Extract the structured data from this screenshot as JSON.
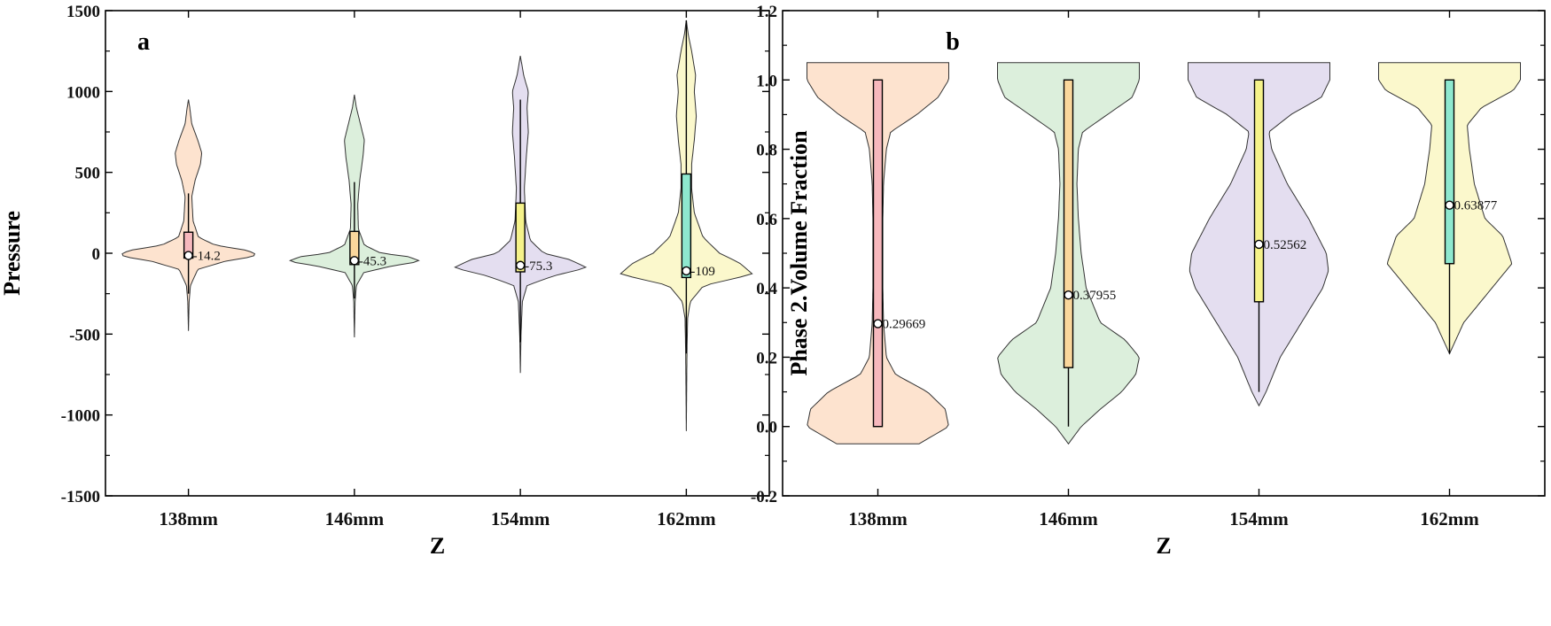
{
  "chart_data": [
    {
      "type": "violin",
      "panel": "a",
      "xlabel": "Z",
      "ylabel": "Pressure",
      "categories": [
        "138mm",
        "146mm",
        "154mm",
        "162mm"
      ],
      "ylim": [
        -1500,
        1500
      ],
      "yticks": [
        -1500,
        -1000,
        -500,
        0,
        500,
        1000,
        1500
      ],
      "ytick_labels": [
        "-1500",
        "-1000",
        "-500",
        "0",
        "500",
        "1000",
        "1500"
      ],
      "violin_colors": [
        "#fde3cf",
        "#dcefdc",
        "#e4def0",
        "#fbf8cc"
      ],
      "box_colors": [
        "#f7b8bd",
        "#fad79c",
        "#f5f28a",
        "#8ee8cf"
      ],
      "distributions": [
        {
          "category": "138mm",
          "min": -480,
          "max": 950,
          "q1": -30,
          "q3": 130,
          "median": -14.2,
          "median_label": "-14.2",
          "whisker_low": -250,
          "whisker_high": 370,
          "profile": [
            [
              -480,
              0
            ],
            [
              -300,
              1
            ],
            [
              -200,
              3
            ],
            [
              -100,
              14
            ],
            [
              -50,
              55
            ],
            [
              -20,
              98
            ],
            [
              0,
              100
            ],
            [
              20,
              85
            ],
            [
              50,
              40
            ],
            [
              100,
              15
            ],
            [
              200,
              7
            ],
            [
              350,
              5
            ],
            [
              450,
              10
            ],
            [
              550,
              18
            ],
            [
              620,
              20
            ],
            [
              700,
              14
            ],
            [
              800,
              5
            ],
            [
              900,
              2
            ],
            [
              950,
              0
            ]
          ]
        },
        {
          "category": "146mm",
          "min": -520,
          "max": 980,
          "q1": -70,
          "q3": 135,
          "median": -45.3,
          "median_label": "-45.3",
          "whisker_low": -280,
          "whisker_high": 440,
          "profile": [
            [
              -520,
              0
            ],
            [
              -300,
              1
            ],
            [
              -200,
              3
            ],
            [
              -120,
              14
            ],
            [
              -80,
              55
            ],
            [
              -50,
              100
            ],
            [
              -20,
              80
            ],
            [
              0,
              40
            ],
            [
              50,
              15
            ],
            [
              150,
              6
            ],
            [
              300,
              5
            ],
            [
              450,
              8
            ],
            [
              600,
              13
            ],
            [
              700,
              15
            ],
            [
              800,
              9
            ],
            [
              900,
              3
            ],
            [
              980,
              0
            ]
          ]
        },
        {
          "category": "154mm",
          "min": -740,
          "max": 1220,
          "q1": -115,
          "q3": 310,
          "median": -75.3,
          "median_label": "-75.3",
          "whisker_low": -550,
          "whisker_high": 950,
          "profile": [
            [
              -740,
              0
            ],
            [
              -500,
              1
            ],
            [
              -300,
              3
            ],
            [
              -200,
              10
            ],
            [
              -140,
              50
            ],
            [
              -90,
              100
            ],
            [
              -40,
              75
            ],
            [
              0,
              35
            ],
            [
              80,
              15
            ],
            [
              200,
              8
            ],
            [
              400,
              6
            ],
            [
              600,
              9
            ],
            [
              750,
              12
            ],
            [
              900,
              10
            ],
            [
              1000,
              12
            ],
            [
              1100,
              5
            ],
            [
              1220,
              0
            ]
          ]
        },
        {
          "category": "162mm",
          "min": -1100,
          "max": 1440,
          "q1": -150,
          "q3": 490,
          "median": -109,
          "median_label": "-109",
          "whisker_low": -620,
          "whisker_high": 1440,
          "profile": [
            [
              -1100,
              0
            ],
            [
              -600,
              1
            ],
            [
              -400,
              2
            ],
            [
              -300,
              6
            ],
            [
              -200,
              26
            ],
            [
              -130,
              100
            ],
            [
              -60,
              80
            ],
            [
              0,
              50
            ],
            [
              100,
              25
            ],
            [
              250,
              12
            ],
            [
              400,
              8
            ],
            [
              550,
              8
            ],
            [
              700,
              12
            ],
            [
              850,
              15
            ],
            [
              1000,
              12
            ],
            [
              1100,
              14
            ],
            [
              1250,
              8
            ],
            [
              1350,
              3
            ],
            [
              1440,
              0
            ]
          ]
        }
      ]
    },
    {
      "type": "violin",
      "panel": "b",
      "xlabel": "Z",
      "ylabel": "Phase 2.Volume Fraction",
      "categories": [
        "138mm",
        "146mm",
        "154mm",
        "162mm"
      ],
      "ylim": [
        -0.2,
        1.2
      ],
      "yticks": [
        -0.2,
        0.0,
        0.2,
        0.4,
        0.6,
        0.8,
        1.0,
        1.2
      ],
      "ytick_labels": [
        "-0.2",
        "0.0",
        "0.2",
        "0.4",
        "0.6",
        "0.8",
        "1.0",
        "1.2"
      ],
      "violin_colors": [
        "#fde3cf",
        "#dcefdc",
        "#e4def0",
        "#fbf8cc"
      ],
      "box_colors": [
        "#f7b8bd",
        "#fad79c",
        "#f5f28a",
        "#8ee8cf"
      ],
      "distributions": [
        {
          "category": "138mm",
          "min": -0.05,
          "max": 1.05,
          "q1": 0.0,
          "q3": 1.0,
          "median": 0.29669,
          "median_label": "0.29669",
          "whisker_low": 0.0,
          "whisker_high": 1.0,
          "profile": [
            [
              -0.05,
              58
            ],
            [
              0.0,
              100
            ],
            [
              0.05,
              95
            ],
            [
              0.1,
              70
            ],
            [
              0.15,
              25
            ],
            [
              0.2,
              12
            ],
            [
              0.3,
              8
            ],
            [
              0.4,
              7
            ],
            [
              0.5,
              7
            ],
            [
              0.6,
              7
            ],
            [
              0.7,
              8
            ],
            [
              0.8,
              12
            ],
            [
              0.85,
              18
            ],
            [
              0.9,
              55
            ],
            [
              0.95,
              85
            ],
            [
              1.0,
              100
            ],
            [
              1.05,
              100
            ]
          ]
        },
        {
          "category": "146mm",
          "min": -0.05,
          "max": 1.05,
          "q1": 0.17,
          "q3": 1.0,
          "median": 0.37955,
          "median_label": "0.37955",
          "whisker_low": 0.0,
          "whisker_high": 1.0,
          "profile": [
            [
              -0.05,
              0
            ],
            [
              0.0,
              18
            ],
            [
              0.05,
              45
            ],
            [
              0.1,
              75
            ],
            [
              0.15,
              95
            ],
            [
              0.2,
              100
            ],
            [
              0.25,
              80
            ],
            [
              0.3,
              45
            ],
            [
              0.4,
              25
            ],
            [
              0.5,
              18
            ],
            [
              0.6,
              14
            ],
            [
              0.7,
              12
            ],
            [
              0.8,
              14
            ],
            [
              0.85,
              20
            ],
            [
              0.9,
              55
            ],
            [
              0.95,
              90
            ],
            [
              1.0,
              100
            ],
            [
              1.05,
              100
            ]
          ]
        },
        {
          "category": "154mm",
          "min": 0.06,
          "max": 1.05,
          "q1": 0.36,
          "q3": 1.0,
          "median": 0.52562,
          "median_label": "0.52562",
          "whisker_low": 0.1,
          "whisker_high": 1.0,
          "profile": [
            [
              0.06,
              0
            ],
            [
              0.1,
              10
            ],
            [
              0.2,
              30
            ],
            [
              0.3,
              60
            ],
            [
              0.4,
              90
            ],
            [
              0.45,
              98
            ],
            [
              0.5,
              95
            ],
            [
              0.6,
              70
            ],
            [
              0.7,
              40
            ],
            [
              0.8,
              18
            ],
            [
              0.85,
              14
            ],
            [
              0.9,
              45
            ],
            [
              0.95,
              88
            ],
            [
              1.0,
              100
            ],
            [
              1.05,
              100
            ]
          ]
        },
        {
          "category": "162mm",
          "min": 0.21,
          "max": 1.05,
          "q1": 0.47,
          "q3": 1.0,
          "median": 0.63877,
          "median_label": "0.63877",
          "whisker_low": 0.21,
          "whisker_high": 1.0,
          "profile": [
            [
              0.21,
              0
            ],
            [
              0.3,
              20
            ],
            [
              0.4,
              60
            ],
            [
              0.47,
              88
            ],
            [
              0.55,
              75
            ],
            [
              0.6,
              50
            ],
            [
              0.7,
              35
            ],
            [
              0.8,
              28
            ],
            [
              0.87,
              25
            ],
            [
              0.92,
              45
            ],
            [
              0.97,
              90
            ],
            [
              1.0,
              100
            ],
            [
              1.05,
              100
            ]
          ]
        }
      ]
    }
  ]
}
